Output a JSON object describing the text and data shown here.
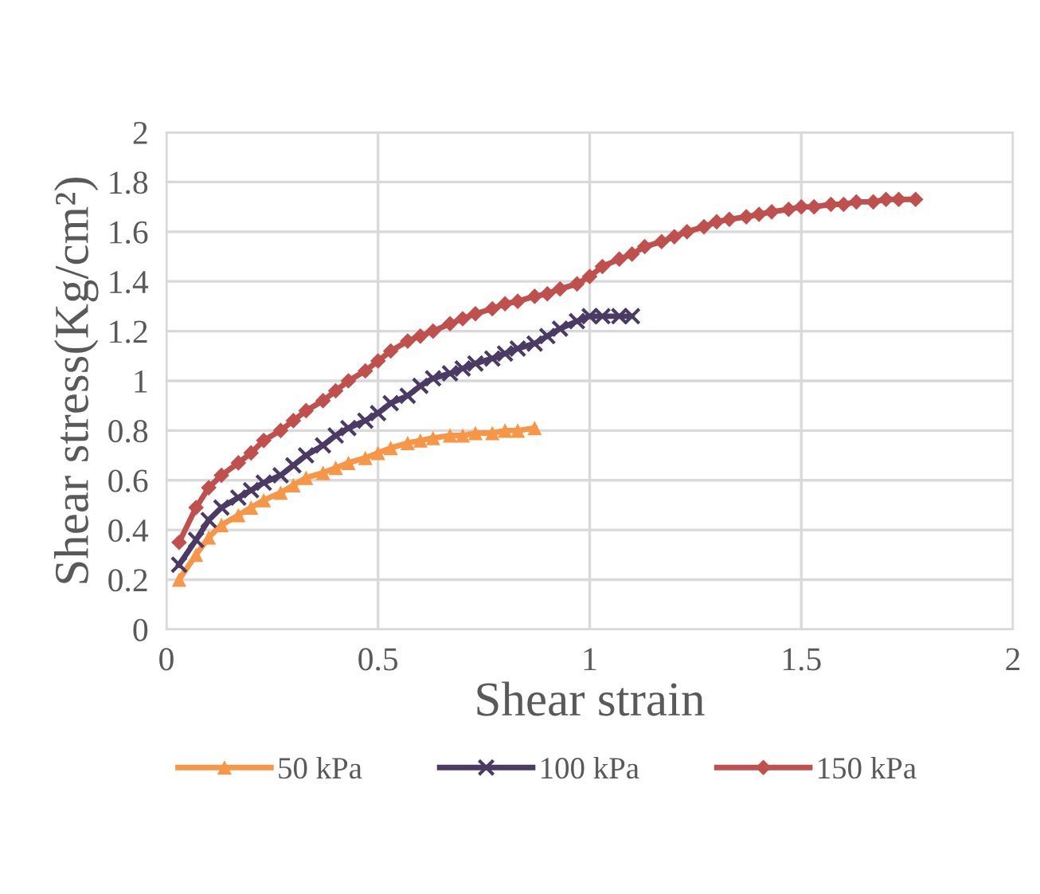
{
  "chart_data": {
    "type": "line",
    "xlabel": "Shear strain",
    "ylabel": "Shear stress(Kg/cm²)",
    "xlim": [
      0,
      2
    ],
    "xticks": [
      0,
      0.5,
      1,
      1.5,
      2
    ],
    "ylim": [
      0,
      2
    ],
    "yticks": [
      0,
      0.2,
      0.4,
      0.6,
      0.8,
      1,
      1.2,
      1.4,
      1.6,
      1.8,
      2
    ],
    "grid": true,
    "legend": "bottom",
    "series": [
      {
        "name": "50 kPa",
        "color": "#f79646",
        "marker": "triangle",
        "x": [
          0.03,
          0.07,
          0.1,
          0.13,
          0.17,
          0.2,
          0.23,
          0.27,
          0.3,
          0.33,
          0.37,
          0.4,
          0.43,
          0.47,
          0.5,
          0.53,
          0.57,
          0.6,
          0.63,
          0.67,
          0.7,
          0.73,
          0.77,
          0.8,
          0.83,
          0.87
        ],
        "values": [
          0.2,
          0.3,
          0.37,
          0.42,
          0.46,
          0.49,
          0.52,
          0.55,
          0.58,
          0.61,
          0.63,
          0.65,
          0.67,
          0.69,
          0.71,
          0.73,
          0.75,
          0.76,
          0.77,
          0.78,
          0.78,
          0.79,
          0.79,
          0.8,
          0.8,
          0.81
        ]
      },
      {
        "name": "100 kPa",
        "color": "#4b3a63",
        "marker": "cross",
        "x": [
          0.03,
          0.07,
          0.1,
          0.13,
          0.17,
          0.2,
          0.23,
          0.27,
          0.3,
          0.33,
          0.37,
          0.4,
          0.43,
          0.47,
          0.5,
          0.53,
          0.57,
          0.6,
          0.63,
          0.67,
          0.7,
          0.73,
          0.77,
          0.8,
          0.83,
          0.87,
          0.9,
          0.93,
          0.97,
          1.0,
          1.03,
          1.07,
          1.1
        ],
        "values": [
          0.26,
          0.36,
          0.44,
          0.49,
          0.53,
          0.56,
          0.59,
          0.62,
          0.66,
          0.7,
          0.74,
          0.78,
          0.81,
          0.84,
          0.87,
          0.91,
          0.94,
          0.98,
          1.01,
          1.03,
          1.05,
          1.07,
          1.09,
          1.11,
          1.13,
          1.15,
          1.18,
          1.21,
          1.24,
          1.26,
          1.26,
          1.26,
          1.26
        ]
      },
      {
        "name": "150 kPa",
        "color": "#c0504d",
        "marker": "diamond",
        "x": [
          0.03,
          0.07,
          0.1,
          0.13,
          0.17,
          0.2,
          0.23,
          0.27,
          0.3,
          0.33,
          0.37,
          0.4,
          0.43,
          0.47,
          0.5,
          0.53,
          0.57,
          0.6,
          0.63,
          0.67,
          0.7,
          0.73,
          0.77,
          0.8,
          0.83,
          0.87,
          0.9,
          0.93,
          0.97,
          1.0,
          1.03,
          1.07,
          1.1,
          1.13,
          1.17,
          1.2,
          1.23,
          1.27,
          1.3,
          1.33,
          1.37,
          1.4,
          1.43,
          1.47,
          1.5,
          1.53,
          1.57,
          1.6,
          1.63,
          1.67,
          1.7,
          1.73,
          1.77
        ],
        "values": [
          0.35,
          0.49,
          0.57,
          0.62,
          0.67,
          0.71,
          0.76,
          0.8,
          0.84,
          0.88,
          0.92,
          0.96,
          1.0,
          1.04,
          1.08,
          1.12,
          1.16,
          1.18,
          1.2,
          1.23,
          1.25,
          1.27,
          1.29,
          1.31,
          1.32,
          1.34,
          1.35,
          1.37,
          1.39,
          1.42,
          1.46,
          1.49,
          1.51,
          1.54,
          1.56,
          1.58,
          1.6,
          1.62,
          1.64,
          1.65,
          1.66,
          1.67,
          1.68,
          1.69,
          1.7,
          1.7,
          1.71,
          1.71,
          1.72,
          1.72,
          1.73,
          1.73,
          1.73
        ]
      }
    ]
  }
}
